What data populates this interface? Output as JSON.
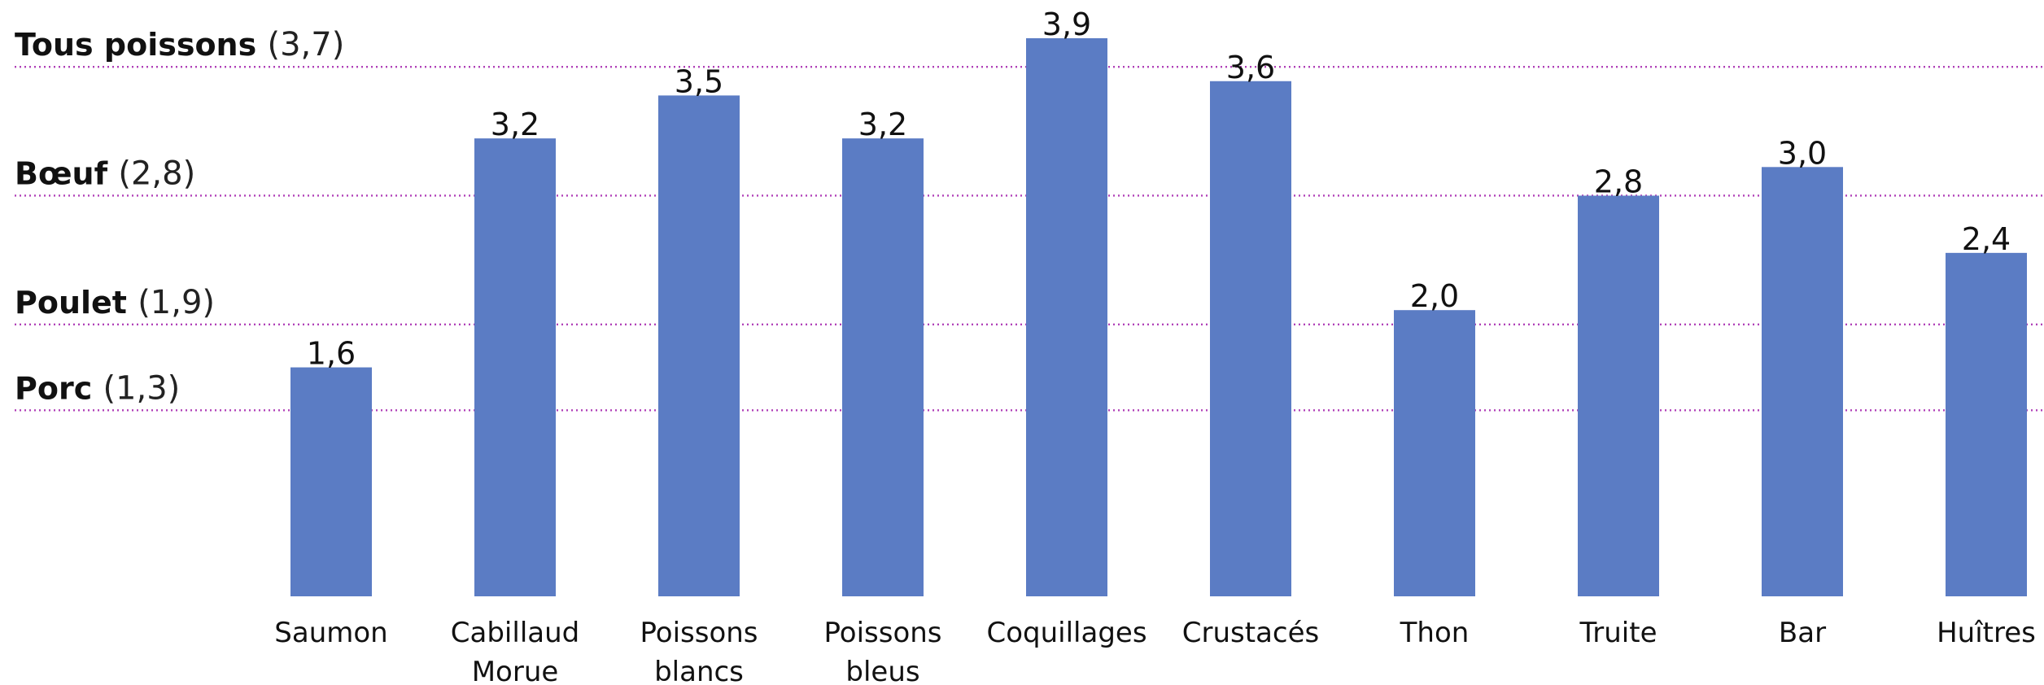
{
  "chart_data": {
    "type": "bar",
    "categories": [
      [
        "Saumon"
      ],
      [
        "Cabillaud",
        "Morue"
      ],
      [
        "Poissons",
        "blancs"
      ],
      [
        "Poissons",
        "bleus"
      ],
      [
        "Coquillages"
      ],
      [
        "Crustacés"
      ],
      [
        "Thon"
      ],
      [
        "Truite"
      ],
      [
        "Bar"
      ],
      [
        "Huîtres"
      ]
    ],
    "values": [
      1.6,
      3.2,
      3.5,
      3.2,
      3.9,
      3.6,
      2.0,
      2.8,
      3.0,
      2.4
    ],
    "value_labels": [
      "1,6",
      "3,2",
      "3,5",
      "3,2",
      "3,9",
      "3,6",
      "2,0",
      "2,8",
      "3,0",
      "2,4"
    ],
    "ylim": [
      0,
      3.9
    ],
    "bar_color": "#5b7cc4",
    "reference_lines": [
      {
        "name": "Tous poissons",
        "value": 3.7,
        "value_label": "(3,7)"
      },
      {
        "name": "Bœuf",
        "value": 2.8,
        "value_label": "(2,8)"
      },
      {
        "name": "Poulet",
        "value": 1.9,
        "value_label": "(1,9)"
      },
      {
        "name": "Porc",
        "value": 1.3,
        "value_label": "(1,3)"
      }
    ],
    "reference_line_color": "#b040b8",
    "title": "",
    "xlabel": "",
    "ylabel": ""
  }
}
